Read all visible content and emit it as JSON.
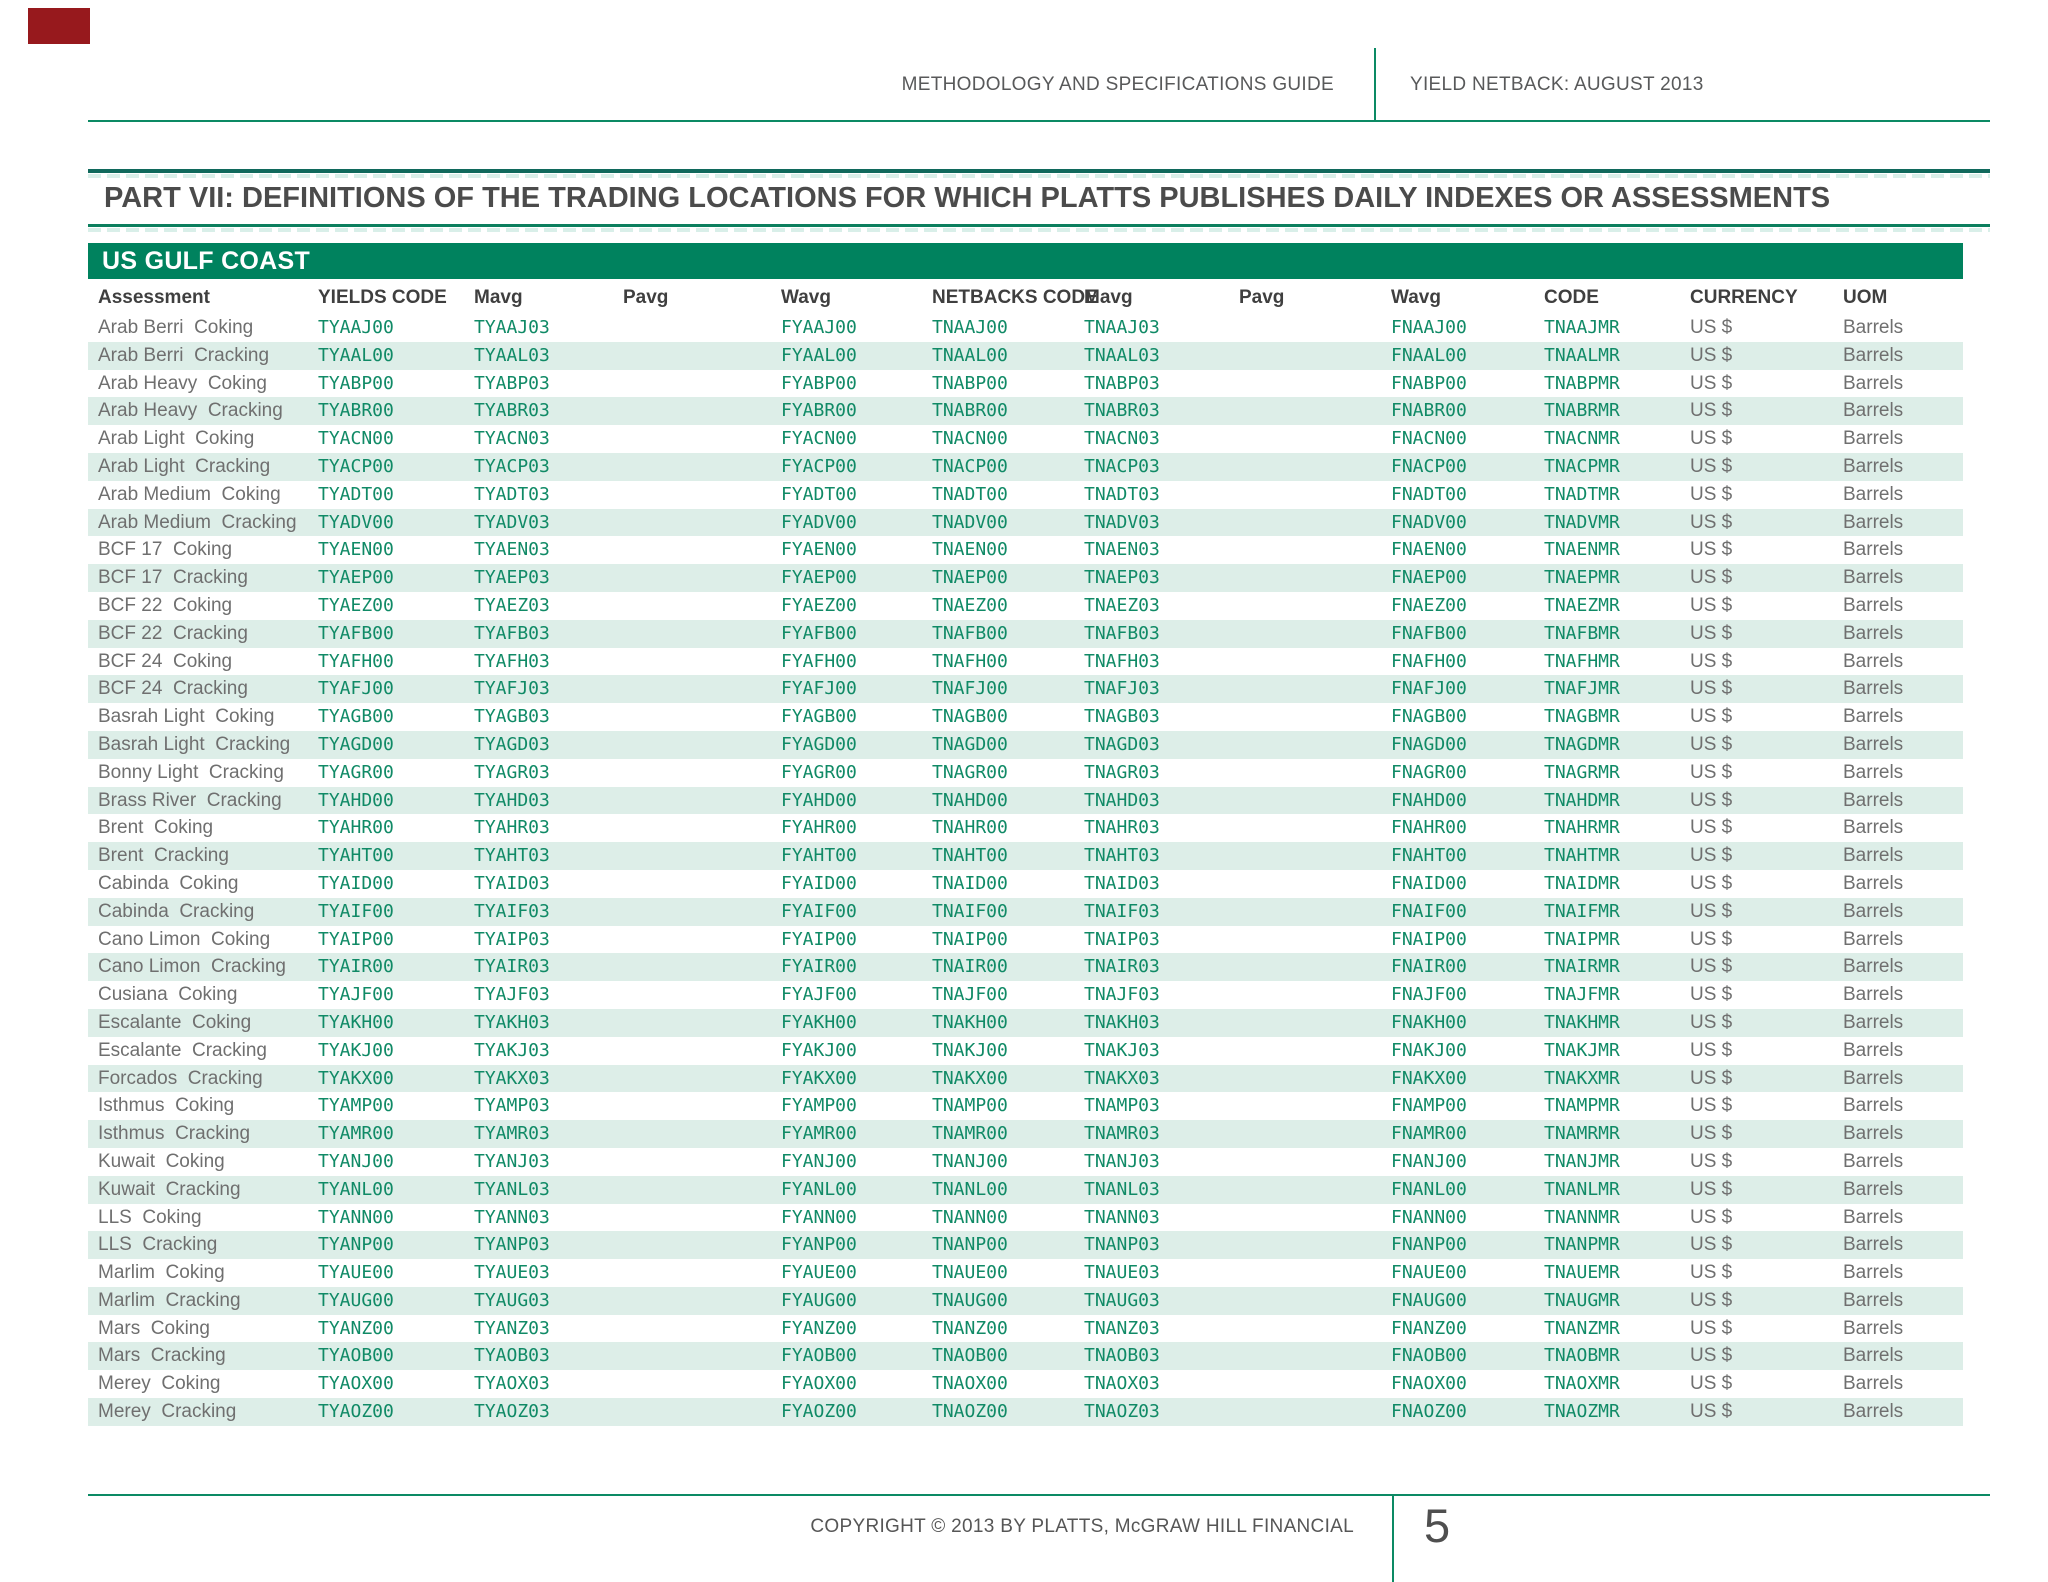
{
  "header": {
    "left": "METHODOLOGY AND SPECIFICATIONS GUIDE",
    "right": "YIELD NETBACK: AUGUST 2013"
  },
  "title": "PART VII: DEFINITIONS OF THE TRADING LOCATIONS FOR WHICH PLATTS PUBLISHES DAILY INDEXES OR ASSESSMENTS",
  "section_header": "US GULF COAST",
  "table": {
    "columns": [
      "Assessment",
      "YIELDS CODE",
      "Mavg",
      "Pavg",
      "Wavg",
      "NETBACKS CODE",
      "Mavg",
      "Pavg",
      "Wavg",
      "CODE",
      "CURRENCY",
      "UOM"
    ],
    "rows": [
      [
        "Arab Berri  Coking",
        "TYAAJ00",
        "TYAAJ03",
        "",
        "FYAAJ00",
        "TNAAJ00",
        "TNAAJ03",
        "",
        "FNAAJ00",
        "TNAAJMR",
        "US $",
        "Barrels"
      ],
      [
        "Arab Berri  Cracking",
        "TYAAL00",
        "TYAAL03",
        "",
        "FYAAL00",
        "TNAAL00",
        "TNAAL03",
        "",
        "FNAAL00",
        "TNAALMR",
        "US $",
        "Barrels"
      ],
      [
        "Arab Heavy  Coking",
        "TYABP00",
        "TYABP03",
        "",
        "FYABP00",
        "TNABP00",
        "TNABP03",
        "",
        "FNABP00",
        "TNABPMR",
        "US $",
        "Barrels"
      ],
      [
        "Arab Heavy  Cracking",
        "TYABR00",
        "TYABR03",
        "",
        "FYABR00",
        "TNABR00",
        "TNABR03",
        "",
        "FNABR00",
        "TNABRMR",
        "US $",
        "Barrels"
      ],
      [
        "Arab Light  Coking",
        "TYACN00",
        "TYACN03",
        "",
        "FYACN00",
        "TNACN00",
        "TNACN03",
        "",
        "FNACN00",
        "TNACNMR",
        "US $",
        "Barrels"
      ],
      [
        "Arab Light  Cracking",
        "TYACP00",
        "TYACP03",
        "",
        "FYACP00",
        "TNACP00",
        "TNACP03",
        "",
        "FNACP00",
        "TNACPMR",
        "US $",
        "Barrels"
      ],
      [
        "Arab Medium  Coking",
        "TYADT00",
        "TYADT03",
        "",
        "FYADT00",
        "TNADT00",
        "TNADT03",
        "",
        "FNADT00",
        "TNADTMR",
        "US $",
        "Barrels"
      ],
      [
        "Arab Medium  Cracking",
        "TYADV00",
        "TYADV03",
        "",
        "FYADV00",
        "TNADV00",
        "TNADV03",
        "",
        "FNADV00",
        "TNADVMR",
        "US $",
        "Barrels"
      ],
      [
        "BCF 17  Coking",
        "TYAEN00",
        "TYAEN03",
        "",
        "FYAEN00",
        "TNAEN00",
        "TNAEN03",
        "",
        "FNAEN00",
        "TNAENMR",
        "US $",
        "Barrels"
      ],
      [
        "BCF 17  Cracking",
        "TYAEP00",
        "TYAEP03",
        "",
        "FYAEP00",
        "TNAEP00",
        "TNAEP03",
        "",
        "FNAEP00",
        "TNAEPMR",
        "US $",
        "Barrels"
      ],
      [
        "BCF 22  Coking",
        "TYAEZ00",
        "TYAEZ03",
        "",
        "FYAEZ00",
        "TNAEZ00",
        "TNAEZ03",
        "",
        "FNAEZ00",
        "TNAEZMR",
        "US $",
        "Barrels"
      ],
      [
        "BCF 22  Cracking",
        "TYAFB00",
        "TYAFB03",
        "",
        "FYAFB00",
        "TNAFB00",
        "TNAFB03",
        "",
        "FNAFB00",
        "TNAFBMR",
        "US $",
        "Barrels"
      ],
      [
        "BCF 24  Coking",
        "TYAFH00",
        "TYAFH03",
        "",
        "FYAFH00",
        "TNAFH00",
        "TNAFH03",
        "",
        "FNAFH00",
        "TNAFHMR",
        "US $",
        "Barrels"
      ],
      [
        "BCF 24  Cracking",
        "TYAFJ00",
        "TYAFJ03",
        "",
        "FYAFJ00",
        "TNAFJ00",
        "TNAFJ03",
        "",
        "FNAFJ00",
        "TNAFJMR",
        "US $",
        "Barrels"
      ],
      [
        "Basrah Light  Coking",
        "TYAGB00",
        "TYAGB03",
        "",
        "FYAGB00",
        "TNAGB00",
        "TNAGB03",
        "",
        "FNAGB00",
        "TNAGBMR",
        "US $",
        "Barrels"
      ],
      [
        "Basrah Light  Cracking",
        "TYAGD00",
        "TYAGD03",
        "",
        "FYAGD00",
        "TNAGD00",
        "TNAGD03",
        "",
        "FNAGD00",
        "TNAGDMR",
        "US $",
        "Barrels"
      ],
      [
        "Bonny Light  Cracking",
        "TYAGR00",
        "TYAGR03",
        "",
        "FYAGR00",
        "TNAGR00",
        "TNAGR03",
        "",
        "FNAGR00",
        "TNAGRMR",
        "US $",
        "Barrels"
      ],
      [
        "Brass River  Cracking",
        "TYAHD00",
        "TYAHD03",
        "",
        "FYAHD00",
        "TNAHD00",
        "TNAHD03",
        "",
        "FNAHD00",
        "TNAHDMR",
        "US $",
        "Barrels"
      ],
      [
        "Brent  Coking",
        "TYAHR00",
        "TYAHR03",
        "",
        "FYAHR00",
        "TNAHR00",
        "TNAHR03",
        "",
        "FNAHR00",
        "TNAHRMR",
        "US $",
        "Barrels"
      ],
      [
        "Brent  Cracking",
        "TYAHT00",
        "TYAHT03",
        "",
        "FYAHT00",
        "TNAHT00",
        "TNAHT03",
        "",
        "FNAHT00",
        "TNAHTMR",
        "US $",
        "Barrels"
      ],
      [
        "Cabinda  Coking",
        "TYAID00",
        "TYAID03",
        "",
        "FYAID00",
        "TNAID00",
        "TNAID03",
        "",
        "FNAID00",
        "TNAIDMR",
        "US $",
        "Barrels"
      ],
      [
        "Cabinda  Cracking",
        "TYAIF00",
        "TYAIF03",
        "",
        "FYAIF00",
        "TNAIF00",
        "TNAIF03",
        "",
        "FNAIF00",
        "TNAIFMR",
        "US $",
        "Barrels"
      ],
      [
        "Cano Limon  Coking",
        "TYAIP00",
        "TYAIP03",
        "",
        "FYAIP00",
        "TNAIP00",
        "TNAIP03",
        "",
        "FNAIP00",
        "TNAIPMR",
        "US $",
        "Barrels"
      ],
      [
        "Cano Limon  Cracking",
        "TYAIR00",
        "TYAIR03",
        "",
        "FYAIR00",
        "TNAIR00",
        "TNAIR03",
        "",
        "FNAIR00",
        "TNAIRMR",
        "US $",
        "Barrels"
      ],
      [
        "Cusiana  Coking",
        "TYAJF00",
        "TYAJF03",
        "",
        "FYAJF00",
        "TNAJF00",
        "TNAJF03",
        "",
        "FNAJF00",
        "TNAJFMR",
        "US $",
        "Barrels"
      ],
      [
        "Escalante  Coking",
        "TYAKH00",
        "TYAKH03",
        "",
        "FYAKH00",
        "TNAKH00",
        "TNAKH03",
        "",
        "FNAKH00",
        "TNAKHMR",
        "US $",
        "Barrels"
      ],
      [
        "Escalante  Cracking",
        "TYAKJ00",
        "TYAKJ03",
        "",
        "FYAKJ00",
        "TNAKJ00",
        "TNAKJ03",
        "",
        "FNAKJ00",
        "TNAKJMR",
        "US $",
        "Barrels"
      ],
      [
        "Forcados  Cracking",
        "TYAKX00",
        "TYAKX03",
        "",
        "FYAKX00",
        "TNAKX00",
        "TNAKX03",
        "",
        "FNAKX00",
        "TNAKXMR",
        "US $",
        "Barrels"
      ],
      [
        "Isthmus  Coking",
        "TYAMP00",
        "TYAMP03",
        "",
        "FYAMP00",
        "TNAMP00",
        "TNAMP03",
        "",
        "FNAMP00",
        "TNAMPMR",
        "US $",
        "Barrels"
      ],
      [
        "Isthmus  Cracking",
        "TYAMR00",
        "TYAMR03",
        "",
        "FYAMR00",
        "TNAMR00",
        "TNAMR03",
        "",
        "FNAMR00",
        "TNAMRMR",
        "US $",
        "Barrels"
      ],
      [
        "Kuwait  Coking",
        "TYANJ00",
        "TYANJ03",
        "",
        "FYANJ00",
        "TNANJ00",
        "TNANJ03",
        "",
        "FNANJ00",
        "TNANJMR",
        "US $",
        "Barrels"
      ],
      [
        "Kuwait  Cracking",
        "TYANL00",
        "TYANL03",
        "",
        "FYANL00",
        "TNANL00",
        "TNANL03",
        "",
        "FNANL00",
        "TNANLMR",
        "US $",
        "Barrels"
      ],
      [
        "LLS  Coking",
        "TYANN00",
        "TYANN03",
        "",
        "FYANN00",
        "TNANN00",
        "TNANN03",
        "",
        "FNANN00",
        "TNANNMR",
        "US $",
        "Barrels"
      ],
      [
        "LLS  Cracking",
        "TYANP00",
        "TYANP03",
        "",
        "FYANP00",
        "TNANP00",
        "TNANP03",
        "",
        "FNANP00",
        "TNANPMR",
        "US $",
        "Barrels"
      ],
      [
        "Marlim  Coking",
        "TYAUE00",
        "TYAUE03",
        "",
        "FYAUE00",
        "TNAUE00",
        "TNAUE03",
        "",
        "FNAUE00",
        "TNAUEMR",
        "US $",
        "Barrels"
      ],
      [
        "Marlim  Cracking",
        "TYAUG00",
        "TYAUG03",
        "",
        "FYAUG00",
        "TNAUG00",
        "TNAUG03",
        "",
        "FNAUG00",
        "TNAUGMR",
        "US $",
        "Barrels"
      ],
      [
        "Mars  Coking",
        "TYANZ00",
        "TYANZ03",
        "",
        "FYANZ00",
        "TNANZ00",
        "TNANZ03",
        "",
        "FNANZ00",
        "TNANZMR",
        "US $",
        "Barrels"
      ],
      [
        "Mars  Cracking",
        "TYAOB00",
        "TYAOB03",
        "",
        "FYAOB00",
        "TNAOB00",
        "TNAOB03",
        "",
        "FNAOB00",
        "TNAOBMR",
        "US $",
        "Barrels"
      ],
      [
        "Merey  Coking",
        "TYAOX00",
        "TYAOX03",
        "",
        "FYAOX00",
        "TNAOX00",
        "TNAOX03",
        "",
        "FNAOX00",
        "TNAOXMR",
        "US $",
        "Barrels"
      ],
      [
        "Merey  Cracking",
        "TYAOZ00",
        "TYAOZ03",
        "",
        "FYAOZ00",
        "TNAOZ00",
        "TNAOZ03",
        "",
        "FNAOZ00",
        "TNAOZMR",
        "US $",
        "Barrels"
      ]
    ]
  },
  "footer": {
    "copyright": "COPYRIGHT © 2013 BY PLATTS, McGRAW HILL FINANCIAL",
    "page_number": "5"
  },
  "colors": {
    "accent_green": "#00825e",
    "rule_green": "#0c8a64",
    "code_text_green": "#108a66",
    "row_stripe": "#ddeee8",
    "corner_marker_red": "#97191d"
  }
}
